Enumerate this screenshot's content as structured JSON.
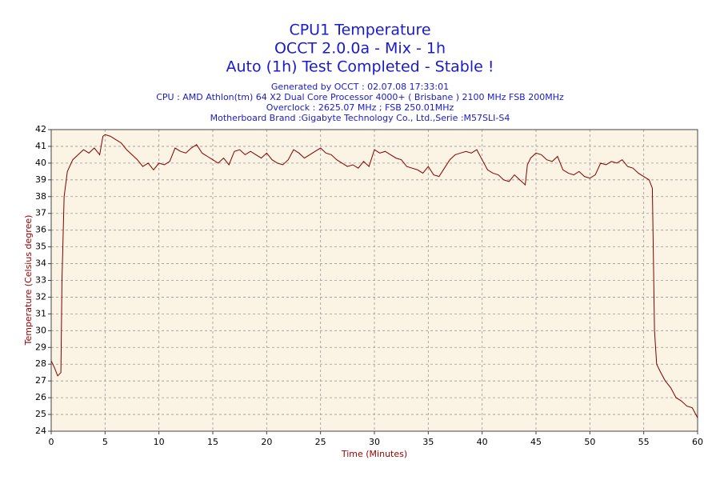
{
  "chart_data": {
    "type": "line",
    "title": "CPU1 Temperature",
    "subtitle": [
      "OCCT 2.0.0a - Mix - 1h",
      "Auto (1h) Test Completed - Stable !"
    ],
    "annotations": [
      "Generated by OCCT : 02.07.08 17:33:01",
      "CPU : AMD Athlon(tm) 64 X2 Dual Core Processor 4000+ ( Brisbane ) 2100 MHz FSB 200MHz",
      "Overclock : 2625.07 MHz ; FSB 250.01MHz",
      "Motherboard Brand :Gigabyte Technology Co., Ltd.,Serie :M57SLI-S4"
    ],
    "x_label": "Time (Minutes)",
    "y_label": "Temperature (Celsius degree)",
    "x": [
      0,
      0.3,
      0.6,
      0.9,
      1.0,
      1.2,
      1.5,
      2,
      2.5,
      3,
      3.5,
      4,
      4.5,
      4.8,
      5,
      5.5,
      6,
      6.5,
      7,
      7.5,
      8,
      8.5,
      9,
      9.5,
      10,
      10.5,
      11,
      11.5,
      12,
      12.5,
      13,
      13.5,
      14,
      14.5,
      15,
      15.5,
      16,
      16.5,
      17,
      17.5,
      18,
      18.5,
      19,
      19.5,
      20,
      20.5,
      21,
      21.5,
      22,
      22.5,
      23,
      23.5,
      24,
      24.5,
      25,
      25.5,
      26,
      26.5,
      27,
      27.5,
      28,
      28.5,
      29,
      29.5,
      30,
      30.5,
      31,
      31.5,
      32,
      32.5,
      33,
      33.5,
      34,
      34.5,
      35,
      35.5,
      36,
      36.5,
      37,
      37.5,
      38,
      38.5,
      39,
      39.5,
      40,
      40.5,
      41,
      41.5,
      42,
      42.5,
      43,
      43.5,
      44,
      44.2,
      44.5,
      45,
      45.5,
      46,
      46.5,
      47,
      47.5,
      48,
      48.5,
      49,
      49.5,
      50,
      50.5,
      51,
      51.5,
      52,
      52.5,
      53,
      53.5,
      54,
      54.5,
      55,
      55.5,
      55.8,
      56,
      56.2,
      56.5,
      57,
      57.5,
      58,
      58.5,
      59,
      59.5,
      60
    ],
    "series": [
      {
        "name": "CPU1",
        "color": "#800000",
        "values": [
          28.2,
          27.8,
          27.3,
          27.5,
          33,
          38,
          39.5,
          40.2,
          40.5,
          40.8,
          40.6,
          40.9,
          40.5,
          41.6,
          41.7,
          41.6,
          41.4,
          41.2,
          40.8,
          40.5,
          40.2,
          39.8,
          40.0,
          39.6,
          40.0,
          39.9,
          40.1,
          40.9,
          40.7,
          40.6,
          40.9,
          41.1,
          40.6,
          40.4,
          40.2,
          40.0,
          40.3,
          39.9,
          40.7,
          40.8,
          40.5,
          40.7,
          40.5,
          40.3,
          40.6,
          40.2,
          40.0,
          39.9,
          40.2,
          40.8,
          40.6,
          40.3,
          40.5,
          40.7,
          40.9,
          40.6,
          40.5,
          40.2,
          40.0,
          39.8,
          39.9,
          39.7,
          40.1,
          39.8,
          40.8,
          40.6,
          40.7,
          40.5,
          40.3,
          40.2,
          39.8,
          39.7,
          39.6,
          39.4,
          39.8,
          39.3,
          39.2,
          39.7,
          40.2,
          40.5,
          40.6,
          40.7,
          40.6,
          40.8,
          40.2,
          39.6,
          39.4,
          39.3,
          39.0,
          38.9,
          39.3,
          39.0,
          38.7,
          39.9,
          40.3,
          40.6,
          40.5,
          40.2,
          40.1,
          40.4,
          39.6,
          39.4,
          39.3,
          39.5,
          39.2,
          39.1,
          39.3,
          40.0,
          39.9,
          40.1,
          40.0,
          40.2,
          39.8,
          39.7,
          39.4,
          39.2,
          39.0,
          38.5,
          30,
          28.0,
          27.6,
          27.0,
          26.6,
          26.0,
          25.8,
          25.5,
          25.4,
          24.8
        ]
      }
    ],
    "xlim": [
      0,
      60
    ],
    "xticks": [
      0,
      5,
      10,
      15,
      20,
      25,
      30,
      35,
      40,
      45,
      50,
      55,
      60
    ],
    "ylim": [
      24,
      42
    ],
    "yticks": [
      24,
      25,
      26,
      27,
      28,
      29,
      30,
      31,
      32,
      33,
      34,
      35,
      36,
      37,
      38,
      39,
      40,
      41,
      42
    ],
    "grid": true,
    "background": "#fbf3e3"
  }
}
